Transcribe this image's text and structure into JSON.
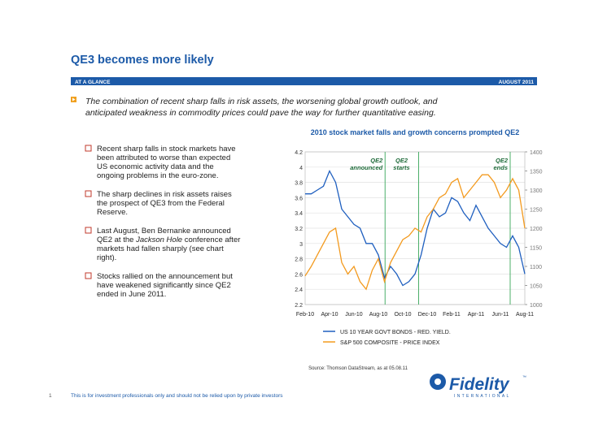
{
  "header": {
    "title": "QE3 becomes more likely",
    "section": "AT A GLANCE",
    "date": "AUGUST 2011"
  },
  "intro": [
    "The combination of recent sharp falls in risk assets, the worsening global growth outlook, and",
    "anticipated weakness in commodity prices could pave the way for further quantitative easing."
  ],
  "bullets": [
    {
      "lines": [
        "Recent sharp falls in stock markets have",
        "been attributed to worse than expected",
        "US economic activity data and the",
        "ongoing problems in the euro-zone."
      ]
    },
    {
      "lines": [
        "The sharp declines in risk assets raises",
        "the prospect of QE3 from the Federal",
        "Reserve."
      ]
    },
    {
      "lines": [
        "Last August, Ben Bernanke announced",
        [
          "QE2 at the ",
          "Jackson Hole",
          " conference after"
        ],
        "markets had fallen sharply (see chart",
        "right)."
      ]
    },
    {
      "lines": [
        "Stocks rallied on the announcement but",
        "have weakened significantly since QE2",
        "ended in June 2011."
      ]
    }
  ],
  "chart_data": {
    "type": "line",
    "title": "2010 stock market falls and growth concerns prompted QE2",
    "categories": [
      "Feb-10",
      null,
      null,
      null,
      "Apr-10",
      null,
      null,
      null,
      "Jun-10",
      null,
      null,
      null,
      "Aug-10",
      null,
      null,
      null,
      "Oct-10",
      null,
      null,
      null,
      "Dec-10",
      null,
      null,
      null,
      "Feb-11",
      null,
      null,
      null,
      "Apr-11",
      null,
      null,
      null,
      "Jun-11",
      null,
      null,
      null,
      "Aug-11"
    ],
    "series": [
      {
        "name": "US 10 YEAR GOVT BONDS - RED. YIELD.",
        "color": "#1f5fbf",
        "values": [
          3.65,
          3.65,
          3.7,
          3.75,
          3.95,
          3.8,
          3.45,
          3.35,
          3.25,
          3.2,
          3.0,
          3.0,
          2.85,
          2.55,
          2.7,
          2.6,
          2.45,
          2.5,
          2.6,
          2.85,
          3.2,
          3.45,
          3.35,
          3.4,
          3.6,
          3.55,
          3.4,
          3.3,
          3.5,
          3.35,
          3.2,
          3.1,
          3.0,
          2.95,
          3.1,
          2.95,
          2.6
        ]
      },
      {
        "name": "S&P 500 COMPOSITE - PRICE INDEX",
        "color": "#f39a1e",
        "axis": "y2",
        "values": [
          1075,
          1100,
          1130,
          1160,
          1190,
          1200,
          1110,
          1080,
          1100,
          1060,
          1040,
          1090,
          1120,
          1060,
          1110,
          1140,
          1170,
          1180,
          1200,
          1190,
          1230,
          1250,
          1280,
          1290,
          1320,
          1330,
          1280,
          1300,
          1320,
          1340,
          1340,
          1320,
          1280,
          1300,
          1330,
          1300,
          1200
        ]
      }
    ],
    "ylim": [
      2.2,
      4.2
    ],
    "yticks": [
      2.2,
      2.4,
      2.6,
      2.8,
      3,
      3.2,
      3.4,
      3.6,
      3.8,
      4,
      4.2
    ],
    "y2lim": [
      1000,
      1400
    ],
    "y2ticks": [
      1000,
      1050,
      1100,
      1150,
      1200,
      1250,
      1300,
      1350,
      1400
    ],
    "grid": true,
    "annotations": [
      [
        "QE2",
        "announced"
      ],
      [
        "QE2",
        "starts"
      ],
      [
        "QE2",
        "ends"
      ]
    ],
    "source": "Source: Thomson DataStream, as at 05.08.11"
  },
  "footer": {
    "page": "1",
    "note": "This is for investment professionals only and should not be relied upon by private investors"
  },
  "logo": {
    "name": "Fidelity",
    "tm": "™",
    "sub": "INTERNATIONAL"
  }
}
